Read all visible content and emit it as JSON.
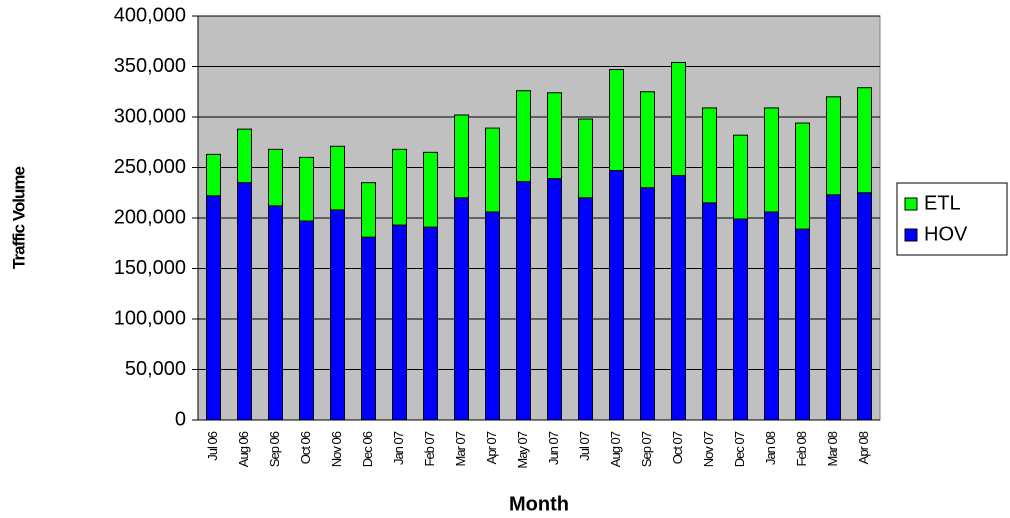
{
  "chart_data": {
    "type": "stacked_bar",
    "x_label": "Month",
    "y_label": "Traffic Volume",
    "categories": [
      "Jul 06",
      "Aug 06",
      "Sep 06",
      "Oct 06",
      "Nov 06",
      "Dec 06",
      "Jan 07",
      "Feb 07",
      "Mar 07",
      "Apr 07",
      "May 07",
      "Jun 07",
      "Jul 07",
      "Aug 07",
      "Sep 07",
      "Oct 07",
      "Nov 07",
      "Dec 07",
      "Jan 08",
      "Feb 08",
      "Mar 08",
      "Apr 08"
    ],
    "series": [
      {
        "name": "HOV",
        "color": "#0000ff",
        "values": [
          222000,
          235000,
          212000,
          197000,
          208000,
          181000,
          193000,
          191000,
          220000,
          206000,
          236000,
          239000,
          220000,
          247000,
          230000,
          242000,
          215000,
          199000,
          206000,
          189000,
          223000,
          225000
        ]
      },
      {
        "name": "ETL",
        "color": "#00ff00",
        "values": [
          41000,
          53000,
          56000,
          63000,
          63000,
          54000,
          75000,
          74000,
          82000,
          83000,
          90000,
          85000,
          78000,
          100000,
          95000,
          112000,
          94000,
          83000,
          103000,
          105000,
          97000,
          104000
        ]
      }
    ],
    "ylim": [
      0,
      400000
    ],
    "yticks": [
      0,
      {
        "value": 50000,
        "label": "50,000"
      },
      {
        "value": 100000,
        "label": "100,000"
      },
      {
        "value": 150000,
        "label": "150,000"
      },
      {
        "value": 200000,
        "label": "200,000"
      },
      {
        "value": 250000,
        "label": "250,000"
      },
      {
        "value": 300000,
        "label": "300,000"
      },
      {
        "value": 350000,
        "label": "350,000"
      },
      {
        "value": 400000,
        "label": "400,000"
      }
    ],
    "grid": true,
    "legend": "right"
  }
}
